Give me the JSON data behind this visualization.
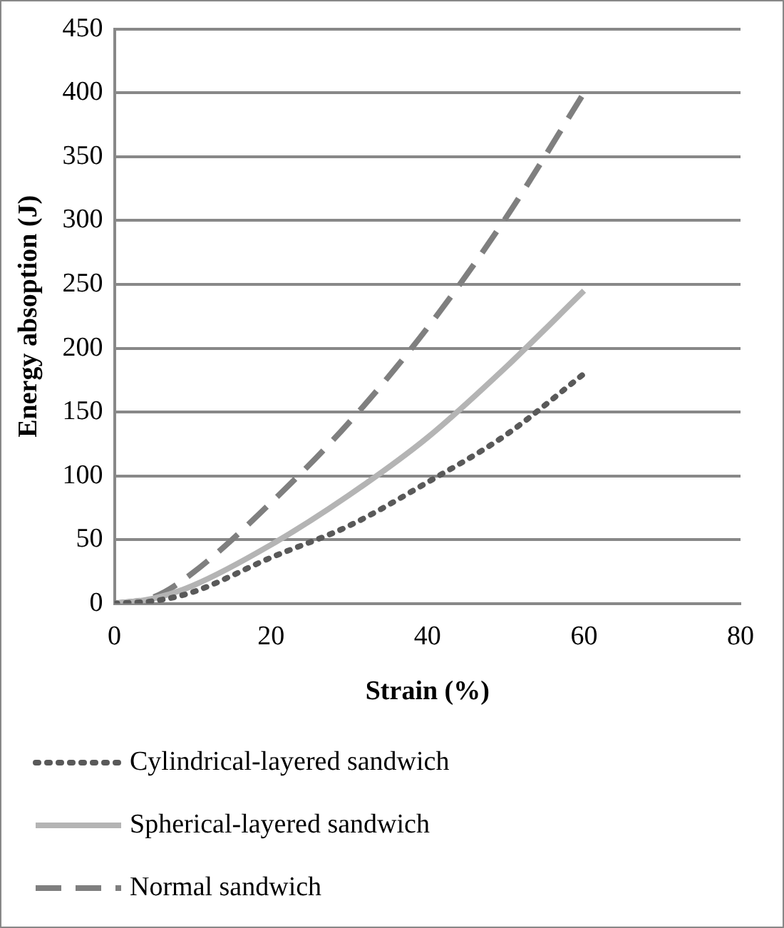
{
  "chart_data": {
    "type": "line",
    "xlabel": "Strain (%)",
    "ylabel": "Energy absoption (J)",
    "xlim": [
      0,
      80
    ],
    "xticks": [
      0,
      20,
      40,
      60,
      80
    ],
    "ylim": [
      0,
      450
    ],
    "yticks": [
      0,
      50,
      100,
      150,
      200,
      250,
      300,
      350,
      400,
      450
    ],
    "grid": "y",
    "legend": "bottom",
    "marker": "none",
    "x": [
      0,
      5,
      10,
      20,
      30,
      40,
      50,
      60
    ],
    "series": [
      {
        "name": "Cylindrical-layered sandwich",
        "color": "#595959",
        "line_style": "dotted",
        "values": [
          0,
          2,
          9,
          36,
          61,
          95,
          132,
          180
        ]
      },
      {
        "name": "Spherical-layered sandwich",
        "color": "#b4b4b4",
        "line_style": "solid",
        "values": [
          0,
          4,
          14,
          46,
          85,
          130,
          185,
          245
        ]
      },
      {
        "name": "Normal sandwich",
        "color": "#7f7f7f",
        "line_style": "dashed",
        "values": [
          0,
          5,
          24,
          79,
          142,
          216,
          302,
          400
        ]
      }
    ]
  }
}
